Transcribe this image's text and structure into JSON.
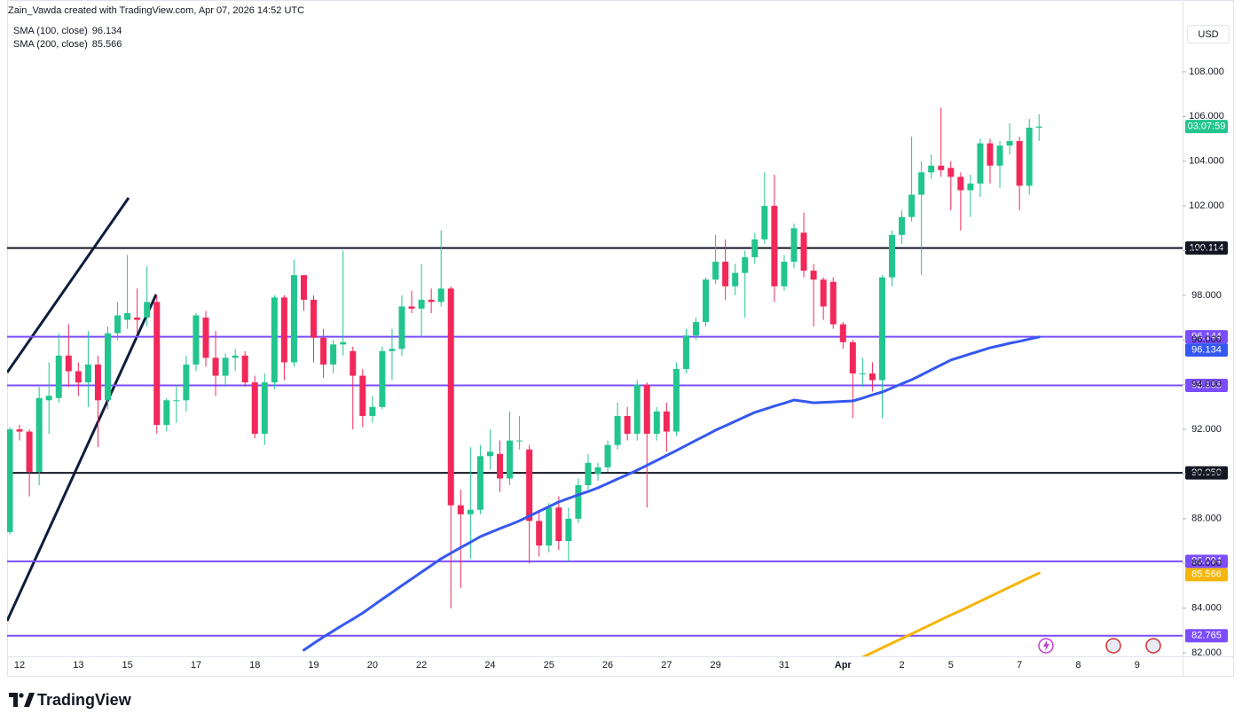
{
  "chart_data": {
    "type": "candlestick",
    "header": "Zain_Vawda created with TradingView.com, Apr 07, 2026 14:52 UTC",
    "currency": "USD",
    "countdown": "03:07:59",
    "brand": "TradingView",
    "up_color": "#22c58e",
    "down_color": "#f2285a",
    "ylim": [
      81.84,
      110.34
    ],
    "yticks": [
      {
        "value": 82,
        "label": "82.000"
      },
      {
        "value": 84,
        "label": "84.000"
      },
      {
        "value": 86,
        "label": "86.000"
      },
      {
        "value": 88,
        "label": "88.000"
      },
      {
        "value": 90,
        "label": "90.000"
      },
      {
        "value": 92,
        "label": "92.000"
      },
      {
        "value": 94,
        "label": "94.000"
      },
      {
        "value": 96,
        "label": "96.000"
      },
      {
        "value": 98,
        "label": "98.000"
      },
      {
        "value": 100,
        "label": "100.000"
      },
      {
        "value": 102,
        "label": "102.000"
      },
      {
        "value": 104,
        "label": "104.000"
      },
      {
        "value": 106,
        "label": "106.000"
      },
      {
        "value": 108,
        "label": "108.000"
      }
    ],
    "levels": [
      {
        "value": 100.114,
        "color": "#131722"
      },
      {
        "value": 96.144,
        "color": "#7b4dff"
      },
      {
        "value": 93.965,
        "color": "#7b4dff"
      },
      {
        "value": 90.05,
        "label": "90.050",
        "color": "#131722"
      },
      {
        "value": 86.094,
        "color": "#7b4dff"
      },
      {
        "value": 82.765,
        "color": "#7b4dff"
      }
    ],
    "categories": [
      null,
      "12",
      null,
      null,
      null,
      null,
      null,
      "13",
      null,
      null,
      null,
      null,
      "15",
      null,
      null,
      null,
      null,
      null,
      null,
      "17",
      null,
      null,
      null,
      null,
      null,
      "18",
      null,
      null,
      null,
      null,
      null,
      "19",
      null,
      null,
      null,
      null,
      null,
      "20",
      null,
      null,
      null,
      null,
      "22",
      null,
      null,
      null,
      null,
      null,
      null,
      "24",
      null,
      null,
      null,
      null,
      null,
      "25",
      null,
      null,
      null,
      null,
      null,
      "26",
      null,
      null,
      null,
      null,
      null,
      "27",
      null,
      null,
      null,
      null,
      "29",
      null,
      null,
      null,
      null,
      null,
      null,
      "31",
      null,
      null,
      null,
      null,
      null,
      "Apr",
      null,
      null,
      null,
      null,
      null,
      "2",
      null,
      null,
      null,
      null,
      "5",
      null,
      null,
      null,
      null,
      null,
      null,
      "7",
      null,
      null,
      null,
      null,
      null,
      "8",
      null,
      null,
      null,
      null,
      null,
      "9",
      null,
      null,
      null,
      null,
      null
    ],
    "open": [
      87.4,
      92.0,
      91.9,
      90.1,
      93.3,
      93.4,
      95.3,
      94.6,
      94.1,
      94.9,
      93.3,
      96.3,
      96.9,
      97.0,
      97.0,
      97.7,
      92.2,
      93.3,
      93.3,
      94.9,
      97.0,
      95.2,
      94.4,
      95.2,
      95.3,
      94.1,
      91.8,
      94.1,
      97.9,
      95.0,
      98.9,
      97.8,
      96.1,
      94.9,
      95.8,
      95.5,
      94.4,
      92.6,
      93.0,
      95.5,
      95.6,
      97.5,
      97.4,
      97.8,
      97.7,
      98.3,
      88.6,
      88.2,
      88.4,
      90.8,
      90.9,
      89.8,
      91.5,
      91.1,
      87.9,
      86.8,
      88.5,
      87.0,
      88.0,
      89.5,
      90.0,
      90.3,
      91.3,
      92.6,
      91.8,
      94.0,
      91.8,
      92.8,
      91.9,
      94.7,
      96.2,
      96.8,
      98.7,
      99.5,
      98.4,
      99.0,
      99.7,
      100.5,
      102.0,
      98.4,
      99.5,
      100.8,
      99.1,
      98.7,
      98.6,
      96.7,
      95.9,
      94.5,
      94.5,
      94.2,
      98.8,
      100.7,
      101.5,
      102.5,
      103.5,
      103.8,
      103.7,
      103.3,
      102.7,
      103.0,
      104.8,
      103.8,
      104.7,
      104.9,
      102.9,
      105.5,
      null,
      null,
      null,
      null,
      null,
      null,
      null,
      null,
      null,
      null,
      null,
      null,
      null,
      null,
      null
    ],
    "high": [
      92.1,
      92.2,
      92.0,
      93.9,
      95.0,
      96.3,
      96.7,
      95.0,
      96.4,
      95.3,
      96.6,
      97.7,
      99.8,
      98.3,
      99.3,
      98.0,
      93.4,
      94.0,
      95.3,
      97.2,
      97.3,
      96.4,
      95.4,
      95.6,
      95.5,
      94.4,
      94.5,
      98.0,
      98.0,
      99.6,
      98.9,
      98.0,
      96.5,
      96.0,
      100.0,
      95.7,
      94.7,
      93.5,
      95.7,
      96.5,
      98.0,
      98.2,
      99.4,
      98.3,
      100.9,
      98.4,
      89.3,
      91.2,
      91.3,
      92.0,
      91.5,
      92.8,
      92.6,
      91.3,
      88.4,
      88.7,
      89.0,
      88.5,
      89.8,
      90.9,
      90.5,
      91.5,
      93.2,
      93.0,
      94.2,
      94.1,
      93.0,
      93.2,
      95.0,
      96.5,
      97.0,
      98.8,
      100.7,
      100.5,
      99.4,
      100.0,
      100.8,
      103.5,
      103.4,
      99.8,
      101.2,
      101.7,
      99.4,
      98.8,
      98.8,
      96.8,
      96.0,
      95.2,
      95.0,
      98.9,
      100.9,
      101.8,
      105.1,
      104.0,
      104.3,
      106.4,
      104.0,
      103.5,
      103.4,
      105.0,
      105.0,
      104.9,
      105.7,
      105.1,
      105.9,
      106.1,
      null,
      null,
      null,
      null,
      null,
      null,
      null,
      null,
      null,
      null,
      null,
      null,
      null,
      null,
      null
    ],
    "low": [
      87.3,
      91.5,
      89.0,
      89.5,
      91.8,
      93.2,
      93.9,
      93.5,
      93.0,
      91.2,
      92.9,
      96.0,
      96.5,
      96.3,
      96.6,
      91.8,
      91.9,
      92.3,
      92.8,
      94.6,
      94.8,
      93.5,
      93.9,
      94.6,
      93.9,
      91.6,
      91.3,
      93.8,
      94.2,
      94.8,
      97.3,
      95.0,
      94.3,
      94.5,
      95.3,
      92.0,
      92.1,
      92.3,
      92.9,
      94.2,
      95.3,
      97.2,
      96.1,
      97.2,
      97.5,
      84.0,
      84.9,
      86.2,
      88.2,
      90.2,
      89.2,
      89.5,
      91.1,
      86.0,
      86.3,
      86.5,
      86.6,
      86.1,
      87.8,
      89.3,
      89.7,
      90.1,
      91.1,
      91.5,
      91.5,
      88.5,
      91.5,
      91.0,
      91.7,
      94.5,
      96.0,
      96.6,
      98.5,
      97.8,
      98.0,
      97.0,
      99.4,
      100.3,
      97.7,
      98.2,
      99.2,
      98.8,
      96.6,
      96.9,
      96.5,
      95.6,
      92.5,
      93.9,
      93.7,
      92.5,
      98.4,
      100.3,
      101.3,
      98.9,
      103.2,
      103.3,
      101.8,
      100.9,
      101.5,
      102.4,
      103.0,
      102.8,
      104.3,
      101.8,
      102.5,
      104.9,
      null,
      null,
      null,
      null,
      null,
      null,
      null,
      null,
      null,
      null,
      null,
      null,
      null,
      null,
      null
    ],
    "close": [
      92.0,
      91.9,
      90.1,
      93.4,
      93.5,
      95.3,
      94.6,
      94.1,
      94.9,
      93.3,
      96.3,
      97.1,
      97.2,
      96.9,
      97.7,
      92.2,
      93.3,
      93.3,
      94.9,
      97.1,
      95.2,
      94.4,
      95.2,
      95.3,
      94.1,
      91.8,
      94.1,
      97.9,
      95.0,
      98.9,
      97.8,
      96.1,
      94.9,
      95.8,
      95.9,
      94.4,
      92.6,
      93.0,
      95.5,
      95.6,
      97.5,
      97.4,
      97.8,
      97.7,
      98.3,
      88.6,
      88.2,
      88.4,
      90.8,
      91.0,
      89.8,
      91.5,
      91.5,
      87.9,
      86.8,
      88.5,
      87.0,
      88.0,
      89.5,
      90.5,
      90.3,
      91.3,
      92.6,
      91.8,
      94.0,
      91.8,
      92.8,
      91.9,
      94.7,
      96.2,
      96.8,
      98.7,
      99.5,
      98.4,
      99.0,
      99.7,
      100.5,
      102.0,
      98.4,
      99.5,
      101.0,
      99.1,
      98.7,
      97.5,
      96.7,
      95.9,
      94.5,
      94.5,
      94.2,
      98.8,
      100.7,
      101.5,
      102.5,
      103.5,
      103.8,
      103.6,
      103.3,
      102.7,
      103.0,
      104.8,
      103.8,
      104.7,
      104.9,
      102.9,
      105.5,
      105.55,
      null,
      null,
      null,
      null,
      null,
      null,
      null,
      null,
      null,
      null,
      null,
      null,
      null,
      null,
      null
    ],
    "series": [
      {
        "name": "SMA (100, close)",
        "color": "#3558f0",
        "values": [
          null,
          null,
          null,
          null,
          null,
          null,
          null,
          null,
          null,
          null,
          null,
          null,
          null,
          null,
          null,
          null,
          null,
          null,
          null,
          null,
          null,
          null,
          null,
          null,
          null,
          null,
          null,
          null,
          null,
          null,
          82.12,
          82.42,
          82.71,
          82.98,
          83.25,
          83.51,
          83.78,
          84.09,
          84.4,
          84.7,
          85.01,
          85.31,
          85.61,
          85.91,
          86.21,
          86.46,
          86.71,
          86.95,
          87.2,
          87.38,
          87.56,
          87.73,
          87.91,
          88.12,
          88.33,
          88.54,
          88.75,
          88.91,
          89.07,
          89.22,
          89.38,
          89.58,
          89.78,
          89.97,
          90.17,
          90.39,
          90.61,
          90.83,
          91.05,
          91.28,
          91.51,
          91.73,
          91.96,
          92.16,
          92.36,
          92.56,
          92.76,
          92.9,
          93.04,
          93.17,
          93.31,
          93.25,
          93.19,
          93.21,
          93.23,
          93.25,
          93.27,
          93.4,
          93.54,
          93.67,
          93.85,
          94.04,
          94.22,
          94.44,
          94.66,
          94.88,
          95.1,
          95.24,
          95.38,
          95.51,
          95.65,
          95.75,
          95.85,
          95.94,
          96.04,
          96.134,
          null,
          null,
          null,
          null,
          null,
          null,
          null,
          null,
          null,
          null,
          null,
          null,
          null,
          null,
          null
        ]
      },
      {
        "name": "SMA (200, close)",
        "color": "#f5b50a",
        "values": [
          null,
          null,
          null,
          null,
          null,
          null,
          null,
          null,
          null,
          null,
          null,
          null,
          null,
          null,
          null,
          null,
          null,
          null,
          null,
          null,
          null,
          null,
          null,
          null,
          null,
          null,
          null,
          null,
          null,
          null,
          null,
          null,
          null,
          null,
          null,
          null,
          null,
          null,
          null,
          null,
          null,
          null,
          null,
          null,
          null,
          null,
          null,
          null,
          null,
          null,
          null,
          null,
          null,
          null,
          null,
          null,
          null,
          null,
          null,
          null,
          null,
          null,
          null,
          null,
          null,
          null,
          null,
          null,
          null,
          null,
          null,
          null,
          null,
          null,
          null,
          null,
          null,
          null,
          null,
          null,
          null,
          null,
          null,
          null,
          null,
          null,
          null,
          81.8,
          82.01,
          82.22,
          82.43,
          82.64,
          82.85,
          83.06,
          83.27,
          83.48,
          83.69,
          83.89,
          84.1,
          84.31,
          84.52,
          84.73,
          84.94,
          85.15,
          85.36,
          85.566,
          null,
          null,
          null,
          null,
          null,
          null,
          null,
          null,
          null,
          null,
          null,
          null,
          null,
          null,
          null
        ]
      }
    ]
  }
}
